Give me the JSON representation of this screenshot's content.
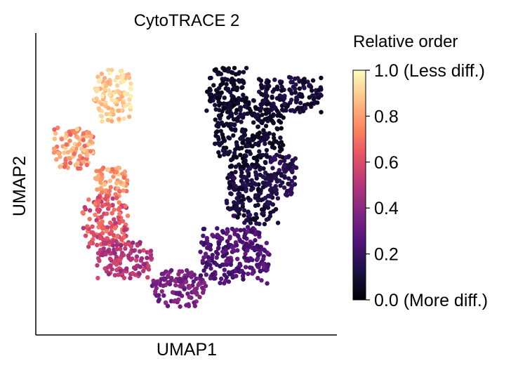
{
  "chart_data": {
    "type": "scatter",
    "title": "CytoTRACE 2",
    "xlabel": "UMAP1",
    "ylabel": "UMAP2",
    "xlim": [
      0,
      100
    ],
    "ylim": [
      0,
      100
    ],
    "grid": false,
    "ticks_shown": false,
    "colormap": "magma",
    "colorbar": {
      "title": "Relative order",
      "range": [
        0,
        1
      ],
      "ticks": [
        {
          "value": 0.0,
          "label": "0.0 (More diff.)"
        },
        {
          "value": 0.2,
          "label": "0.2"
        },
        {
          "value": 0.4,
          "label": "0.4"
        },
        {
          "value": 0.6,
          "label": "0.6"
        },
        {
          "value": 0.8,
          "label": "0.8"
        },
        {
          "value": 1.0,
          "label": "1.0 (Less diff.)"
        }
      ],
      "placement": "right"
    },
    "regions": [
      {
        "x": [
          18,
          31
        ],
        "y": [
          72,
          91
        ],
        "value": [
          0.82,
          0.98
        ]
      },
      {
        "x": [
          4,
          18
        ],
        "y": [
          55,
          70
        ],
        "value": [
          0.65,
          0.92
        ]
      },
      {
        "x": [
          18,
          30
        ],
        "y": [
          45,
          56
        ],
        "value": [
          0.68,
          0.9
        ]
      },
      {
        "x": [
          14,
          30
        ],
        "y": [
          28,
          46
        ],
        "value": [
          0.5,
          0.75
        ]
      },
      {
        "x": [
          19,
          39
        ],
        "y": [
          17,
          30
        ],
        "value": [
          0.4,
          0.6
        ]
      },
      {
        "x": [
          38,
          57
        ],
        "y": [
          7,
          20
        ],
        "value": [
          0.28,
          0.42
        ]
      },
      {
        "x": [
          55,
          79
        ],
        "y": [
          15,
          35
        ],
        "value": [
          0.18,
          0.32
        ]
      },
      {
        "x": [
          64,
          82
        ],
        "y": [
          36,
          58
        ],
        "value": [
          0.05,
          0.18
        ]
      },
      {
        "x": [
          60,
          84
        ],
        "y": [
          56,
          80
        ],
        "value": [
          0.03,
          0.12
        ]
      },
      {
        "x": [
          57,
          71
        ],
        "y": [
          75,
          91
        ],
        "value": [
          0.03,
          0.12
        ]
      },
      {
        "x": [
          75,
          97
        ],
        "y": [
          75,
          88
        ],
        "value": [
          0.05,
          0.16
        ]
      },
      {
        "x": [
          78,
          89
        ],
        "y": [
          45,
          60
        ],
        "value": [
          0.1,
          0.2
        ]
      }
    ]
  }
}
